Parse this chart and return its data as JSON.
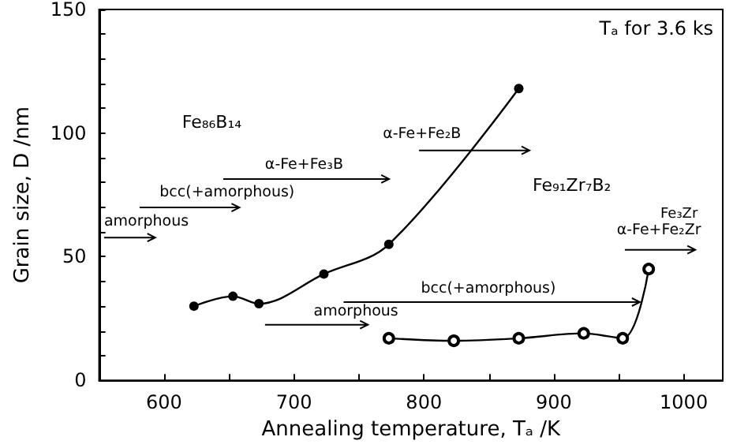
{
  "chart_data": {
    "type": "line",
    "xlabel": "Annealing temperature, Tₐ /K",
    "ylabel": "Grain size, D /nm",
    "xlim": [
      550,
      1030
    ],
    "xticks": [
      600,
      {
        "value": 650,
        "label": null
      },
      700,
      {
        "value": 750,
        "label": null
      },
      800,
      {
        "value": 850,
        "label": null
      },
      900,
      {
        "value": 950,
        "label": null
      },
      1000
    ],
    "ylim": [
      0,
      150
    ],
    "yticks": [
      0,
      {
        "value": 10,
        "label": null
      },
      {
        "value": 20,
        "label": null
      },
      {
        "value": 30,
        "label": null
      },
      {
        "value": 40,
        "label": null
      },
      50,
      {
        "value": 60,
        "label": null
      },
      {
        "value": 70,
        "label": null
      },
      {
        "value": 80,
        "label": null
      },
      {
        "value": 90,
        "label": null
      },
      100,
      {
        "value": 110,
        "label": null
      },
      {
        "value": 120,
        "label": null
      },
      {
        "value": 130,
        "label": null
      },
      {
        "value": 140,
        "label": null
      },
      150
    ],
    "grid": false,
    "marker": "circle",
    "series": [
      {
        "color": "#000000",
        "x": [
          623,
          653,
          673,
          723,
          773,
          873
        ],
        "values": [
          30,
          34,
          31,
          43,
          55,
          118
        ]
      },
      {
        "color": "#000000",
        "x": [
          773,
          823,
          873,
          923,
          953,
          973
        ],
        "values": [
          17,
          16,
          17,
          19,
          17,
          45
        ]
      }
    ],
    "annotations": [
      "Tₐ for 3.6 ks",
      "Fe₈₆B₁₄",
      "Fe₉₁Zr₇B₂",
      "amorphous",
      "bcc(+amorphous)",
      "α-Fe+Fe₃B",
      "α-Fe+Fe₂B",
      "Fe₃Zr",
      "α-Fe+Fe₂Zr",
      "bcc(+amorphous)",
      "amorphous"
    ]
  }
}
